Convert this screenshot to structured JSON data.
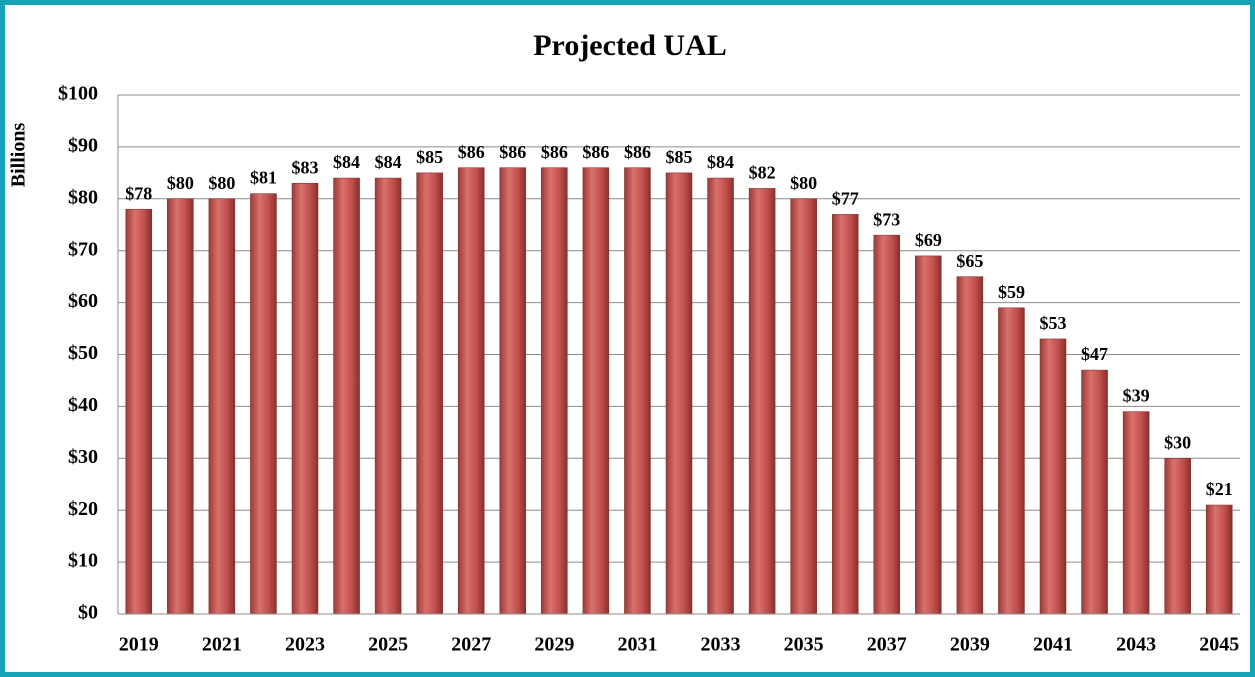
{
  "chart_data": {
    "type": "bar",
    "title": "Projected UAL",
    "ylabel": "Billions",
    "categories": [
      "2019",
      null,
      "2021",
      null,
      "2023",
      null,
      "2025",
      null,
      "2027",
      null,
      "2029",
      null,
      "2031",
      null,
      "2033",
      null,
      "2035",
      null,
      "2037",
      null,
      "2039",
      null,
      "2041",
      null,
      "2043",
      null,
      "2045"
    ],
    "values": [
      78,
      80,
      80,
      81,
      83,
      84,
      84,
      85,
      86,
      86,
      86,
      86,
      86,
      85,
      84,
      82,
      80,
      77,
      73,
      69,
      65,
      59,
      53,
      47,
      39,
      30,
      21
    ],
    "value_labels": [
      "$78",
      "$80",
      "$80",
      "$81",
      "$83",
      "$84",
      "$84",
      "$85",
      "$86",
      "$86",
      "$86",
      "$86",
      "$86",
      "$85",
      "$84",
      "$82",
      "$80",
      "$77",
      "$73",
      "$69",
      "$65",
      "$59",
      "$53",
      "$47",
      "$39",
      "$30",
      "$21"
    ],
    "color": "#c0504d",
    "ylim": [
      0,
      100
    ],
    "yticks": [
      {
        "value": 0,
        "label": "$0"
      },
      {
        "value": 10,
        "label": "$10"
      },
      {
        "value": 20,
        "label": "$20"
      },
      {
        "value": 30,
        "label": "$30"
      },
      {
        "value": 40,
        "label": "$40"
      },
      {
        "value": 50,
        "label": "$50"
      },
      {
        "value": 60,
        "label": "$60"
      },
      {
        "value": 70,
        "label": "$70"
      },
      {
        "value": 80,
        "label": "$80"
      },
      {
        "value": 90,
        "label": "$90"
      },
      {
        "value": 100,
        "label": "$100"
      }
    ],
    "grid": true
  }
}
